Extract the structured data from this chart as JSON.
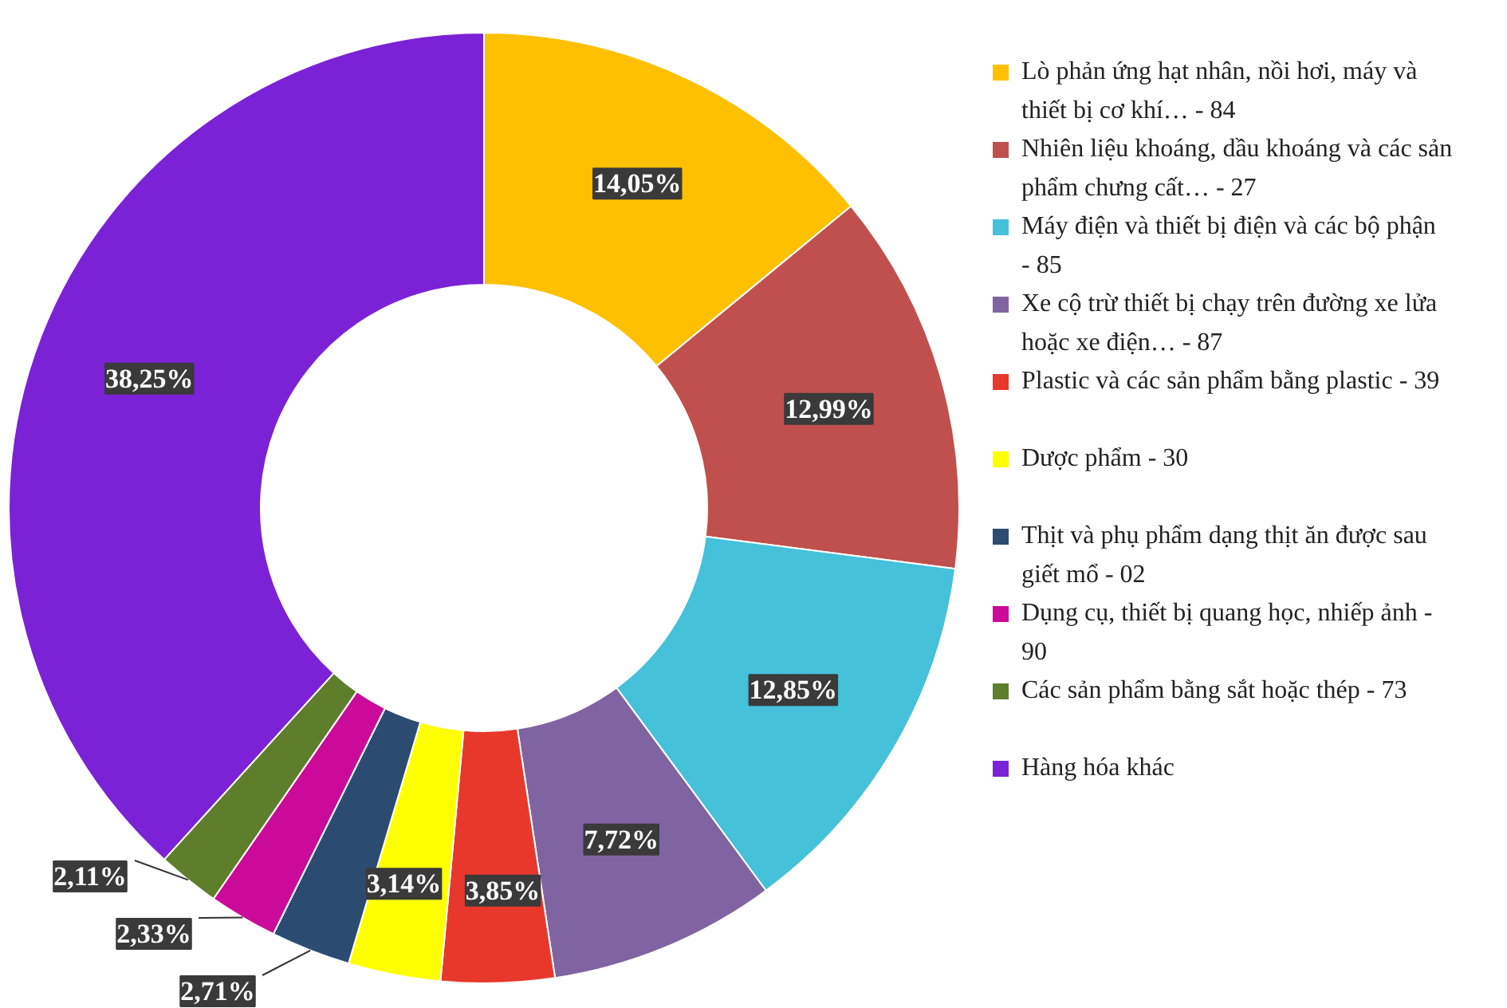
{
  "chart_data": {
    "type": "donut",
    "categories": [
      "Lò phản ứng hạt nhân, nồi hơi, máy và thiết bị cơ khí… - 84",
      "Nhiên liệu khoáng, dầu khoáng và các sản phẩm chưng cất… - 27",
      "Máy điện và thiết bị điện và các bộ phận - 85",
      "Xe cộ trừ thiết bị chạy trên đường xe lửa hoặc xe điện… - 87",
      "Plastic và các sản phẩm bằng plastic - 39",
      "Dược phẩm - 30",
      "Thịt và phụ phẩm dạng thịt ăn được sau giết mổ - 02",
      "Dụng cụ, thiết bị quang học, nhiếp ảnh - 90",
      "Các sản phẩm bằng sắt hoặc thép - 73",
      "Hàng hóa khác"
    ],
    "values": [
      14.05,
      12.99,
      12.85,
      7.72,
      3.85,
      3.14,
      2.71,
      2.33,
      2.11,
      38.25
    ],
    "value_labels": [
      "14,05%",
      "12,99%",
      "12,85%",
      "7,72%",
      "3,85%",
      "3,14%",
      "2,71%",
      "2,33%",
      "2,11%",
      "38,25%"
    ],
    "colors": [
      "#ffc000",
      "#c0504d",
      "#45c1da",
      "#8064a2",
      "#e8382c",
      "#ffff00",
      "#2b4c70",
      "#cc0a99",
      "#5e7e2c",
      "#7b22d6"
    ],
    "legend": "right"
  }
}
